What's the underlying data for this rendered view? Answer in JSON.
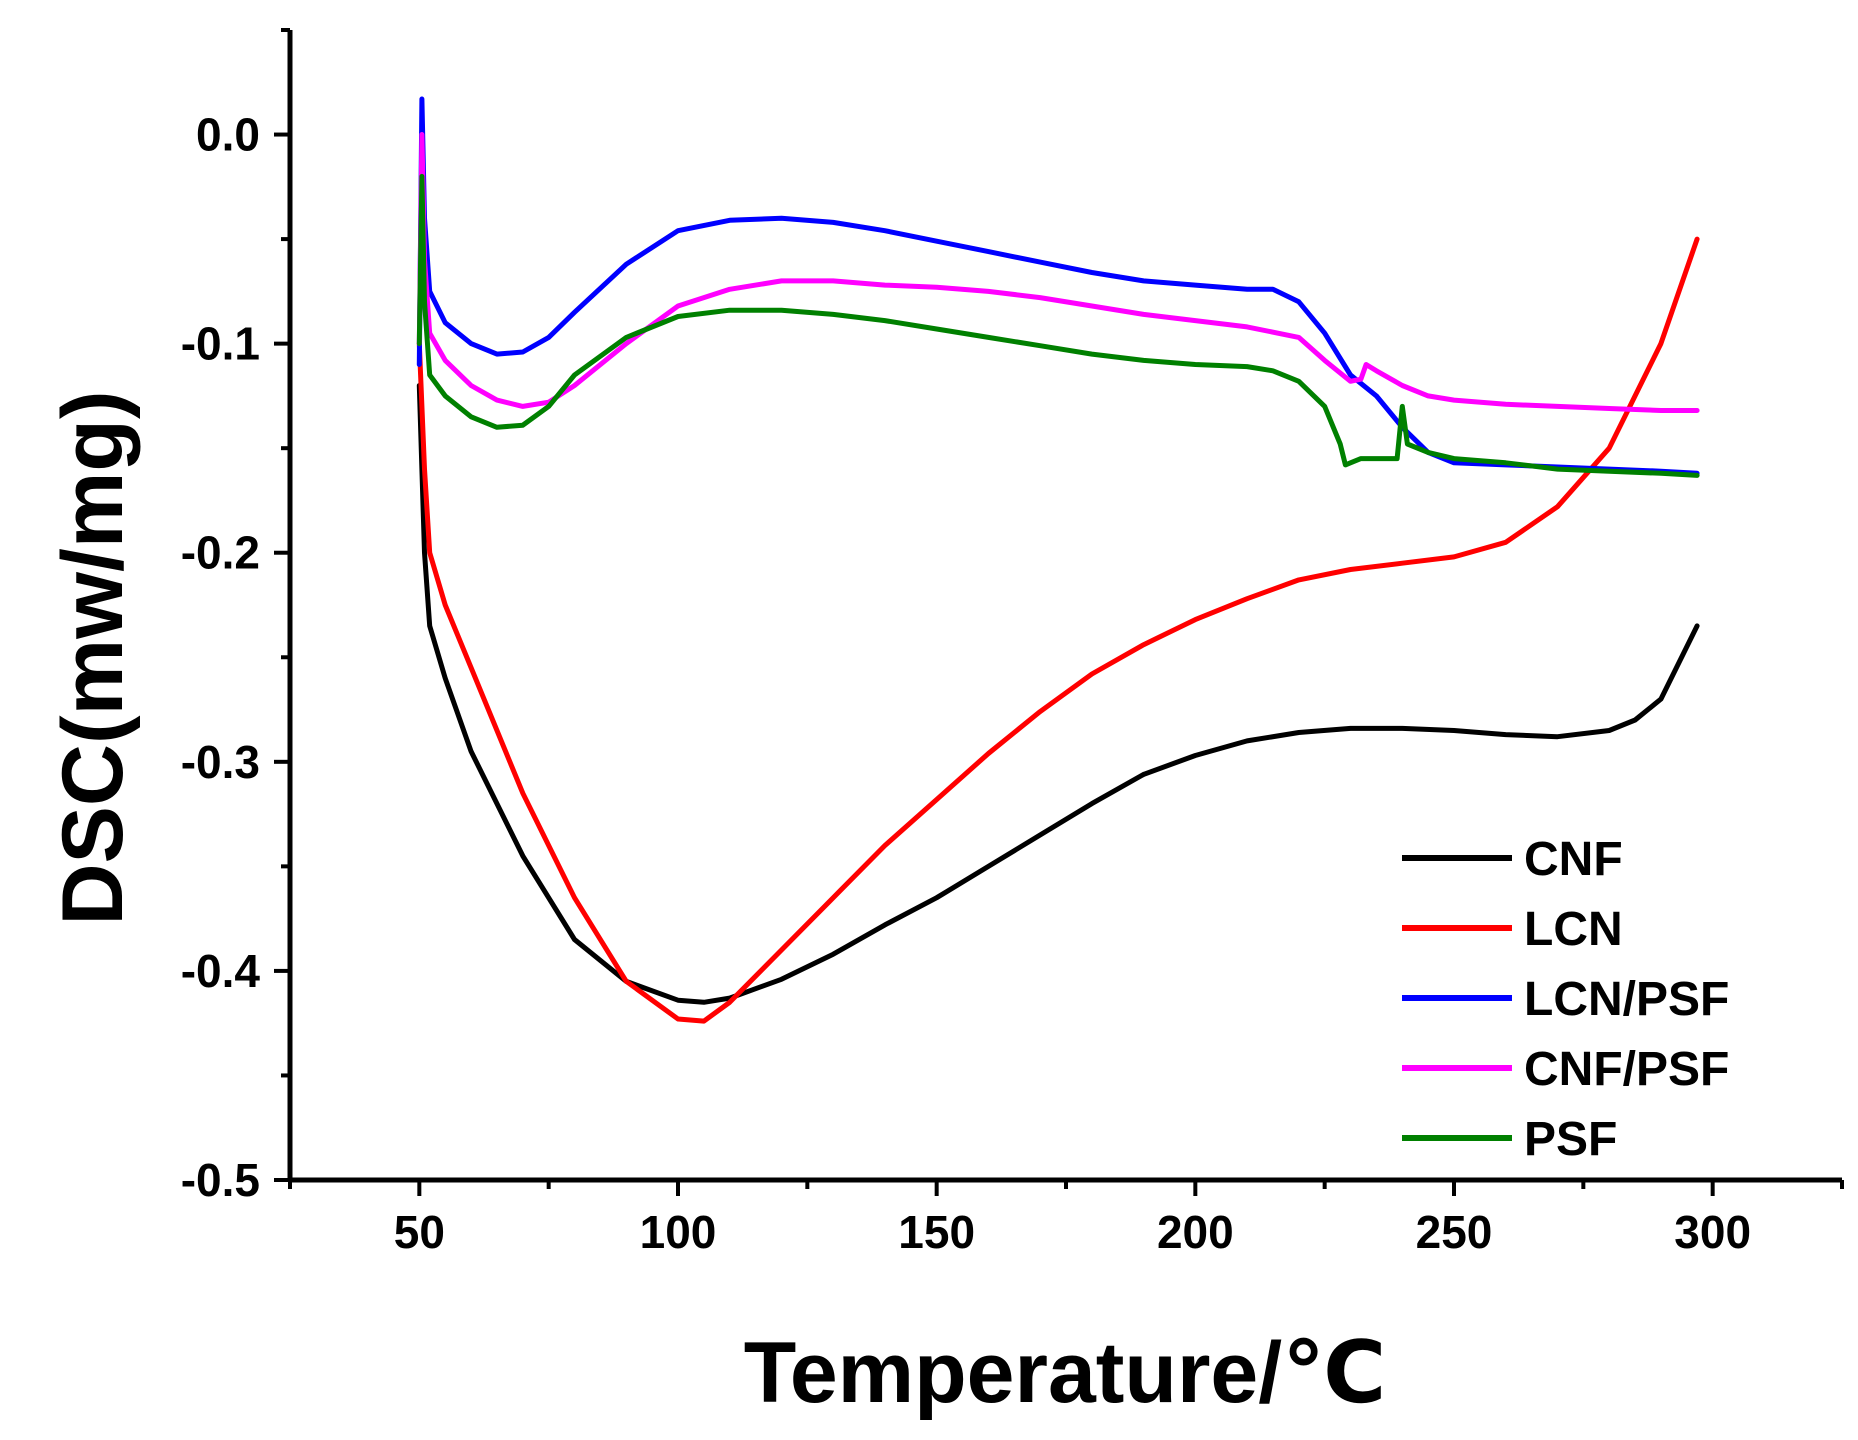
{
  "chart_data": {
    "type": "line",
    "title": "",
    "xlabel": "Temperature/℃",
    "ylabel": "DSC(mw/mg)",
    "xlim": [
      25,
      325
    ],
    "ylim": [
      -0.5,
      0.05
    ],
    "x_ticks": [
      50,
      100,
      150,
      200,
      250,
      300
    ],
    "x_tick_labels": [
      "50",
      "100",
      "150",
      "200",
      "250",
      "300"
    ],
    "y_ticks": [
      -0.5,
      -0.4,
      -0.3,
      -0.2,
      -0.1,
      0.0
    ],
    "y_tick_labels": [
      "-0.5",
      "-0.4",
      "-0.3",
      "-0.2",
      "-0.1",
      "0.0"
    ],
    "grid": false,
    "legend_position": "bottom-right",
    "series": [
      {
        "name": "CNF",
        "color": "#000000",
        "points": [
          [
            50,
            -0.12
          ],
          [
            51,
            -0.2
          ],
          [
            52,
            -0.235
          ],
          [
            55,
            -0.26
          ],
          [
            60,
            -0.295
          ],
          [
            70,
            -0.345
          ],
          [
            80,
            -0.385
          ],
          [
            90,
            -0.405
          ],
          [
            100,
            -0.414
          ],
          [
            105,
            -0.415
          ],
          [
            110,
            -0.413
          ],
          [
            120,
            -0.404
          ],
          [
            130,
            -0.392
          ],
          [
            140,
            -0.378
          ],
          [
            150,
            -0.365
          ],
          [
            160,
            -0.35
          ],
          [
            170,
            -0.335
          ],
          [
            180,
            -0.32
          ],
          [
            190,
            -0.306
          ],
          [
            200,
            -0.297
          ],
          [
            210,
            -0.29
          ],
          [
            220,
            -0.286
          ],
          [
            230,
            -0.284
          ],
          [
            240,
            -0.284
          ],
          [
            250,
            -0.285
          ],
          [
            260,
            -0.287
          ],
          [
            270,
            -0.288
          ],
          [
            280,
            -0.285
          ],
          [
            285,
            -0.28
          ],
          [
            290,
            -0.27
          ],
          [
            297,
            -0.235
          ]
        ]
      },
      {
        "name": "LCN",
        "color": "#ff0000",
        "points": [
          [
            50,
            -0.1
          ],
          [
            51,
            -0.16
          ],
          [
            52,
            -0.2
          ],
          [
            55,
            -0.225
          ],
          [
            60,
            -0.255
          ],
          [
            70,
            -0.315
          ],
          [
            80,
            -0.365
          ],
          [
            90,
            -0.405
          ],
          [
            100,
            -0.423
          ],
          [
            105,
            -0.424
          ],
          [
            110,
            -0.415
          ],
          [
            120,
            -0.39
          ],
          [
            130,
            -0.365
          ],
          [
            140,
            -0.34
          ],
          [
            150,
            -0.318
          ],
          [
            160,
            -0.296
          ],
          [
            170,
            -0.276
          ],
          [
            180,
            -0.258
          ],
          [
            190,
            -0.244
          ],
          [
            200,
            -0.232
          ],
          [
            210,
            -0.222
          ],
          [
            220,
            -0.213
          ],
          [
            230,
            -0.208
          ],
          [
            240,
            -0.205
          ],
          [
            250,
            -0.202
          ],
          [
            260,
            -0.195
          ],
          [
            270,
            -0.178
          ],
          [
            280,
            -0.15
          ],
          [
            290,
            -0.1
          ],
          [
            297,
            -0.05
          ]
        ]
      },
      {
        "name": "LCN/PSF",
        "color": "#0000ff",
        "points": [
          [
            50,
            -0.11
          ],
          [
            50.5,
            0.017
          ],
          [
            51,
            -0.04
          ],
          [
            52,
            -0.075
          ],
          [
            55,
            -0.09
          ],
          [
            60,
            -0.1
          ],
          [
            65,
            -0.105
          ],
          [
            70,
            -0.104
          ],
          [
            75,
            -0.097
          ],
          [
            80,
            -0.085
          ],
          [
            90,
            -0.062
          ],
          [
            100,
            -0.046
          ],
          [
            110,
            -0.041
          ],
          [
            120,
            -0.04
          ],
          [
            130,
            -0.042
          ],
          [
            140,
            -0.046
          ],
          [
            150,
            -0.051
          ],
          [
            160,
            -0.056
          ],
          [
            170,
            -0.061
          ],
          [
            180,
            -0.066
          ],
          [
            190,
            -0.07
          ],
          [
            200,
            -0.072
          ],
          [
            210,
            -0.074
          ],
          [
            215,
            -0.074
          ],
          [
            220,
            -0.08
          ],
          [
            225,
            -0.095
          ],
          [
            230,
            -0.115
          ],
          [
            235,
            -0.125
          ],
          [
            240,
            -0.14
          ],
          [
            245,
            -0.152
          ],
          [
            250,
            -0.157
          ],
          [
            260,
            -0.158
          ],
          [
            270,
            -0.159
          ],
          [
            280,
            -0.16
          ],
          [
            290,
            -0.161
          ],
          [
            297,
            -0.162
          ]
        ]
      },
      {
        "name": "CNF/PSF",
        "color": "#ff00ff",
        "points": [
          [
            50,
            -0.1
          ],
          [
            50.5,
            0.0
          ],
          [
            51,
            -0.06
          ],
          [
            52,
            -0.095
          ],
          [
            55,
            -0.108
          ],
          [
            60,
            -0.12
          ],
          [
            65,
            -0.127
          ],
          [
            70,
            -0.13
          ],
          [
            75,
            -0.128
          ],
          [
            80,
            -0.12
          ],
          [
            90,
            -0.1
          ],
          [
            100,
            -0.082
          ],
          [
            110,
            -0.074
          ],
          [
            120,
            -0.07
          ],
          [
            130,
            -0.07
          ],
          [
            140,
            -0.072
          ],
          [
            150,
            -0.073
          ],
          [
            160,
            -0.075
          ],
          [
            170,
            -0.078
          ],
          [
            180,
            -0.082
          ],
          [
            190,
            -0.086
          ],
          [
            200,
            -0.089
          ],
          [
            210,
            -0.092
          ],
          [
            220,
            -0.097
          ],
          [
            225,
            -0.108
          ],
          [
            230,
            -0.118
          ],
          [
            232,
            -0.117
          ],
          [
            233,
            -0.11
          ],
          [
            235,
            -0.113
          ],
          [
            240,
            -0.12
          ],
          [
            245,
            -0.125
          ],
          [
            250,
            -0.127
          ],
          [
            260,
            -0.129
          ],
          [
            270,
            -0.13
          ],
          [
            280,
            -0.131
          ],
          [
            290,
            -0.132
          ],
          [
            297,
            -0.132
          ]
        ]
      },
      {
        "name": "PSF",
        "color": "#008000",
        "points": [
          [
            50,
            -0.1
          ],
          [
            50.5,
            -0.02
          ],
          [
            51,
            -0.08
          ],
          [
            52,
            -0.115
          ],
          [
            55,
            -0.125
          ],
          [
            60,
            -0.135
          ],
          [
            65,
            -0.14
          ],
          [
            70,
            -0.139
          ],
          [
            75,
            -0.13
          ],
          [
            80,
            -0.115
          ],
          [
            90,
            -0.097
          ],
          [
            100,
            -0.087
          ],
          [
            110,
            -0.084
          ],
          [
            120,
            -0.084
          ],
          [
            130,
            -0.086
          ],
          [
            140,
            -0.089
          ],
          [
            150,
            -0.093
          ],
          [
            160,
            -0.097
          ],
          [
            170,
            -0.101
          ],
          [
            180,
            -0.105
          ],
          [
            190,
            -0.108
          ],
          [
            200,
            -0.11
          ],
          [
            210,
            -0.111
          ],
          [
            215,
            -0.113
          ],
          [
            220,
            -0.118
          ],
          [
            225,
            -0.13
          ],
          [
            228,
            -0.148
          ],
          [
            229,
            -0.158
          ],
          [
            230,
            -0.157
          ],
          [
            232,
            -0.155
          ],
          [
            235,
            -0.155
          ],
          [
            239,
            -0.155
          ],
          [
            240,
            -0.13
          ],
          [
            241,
            -0.148
          ],
          [
            245,
            -0.152
          ],
          [
            250,
            -0.155
          ],
          [
            260,
            -0.157
          ],
          [
            270,
            -0.16
          ],
          [
            280,
            -0.161
          ],
          [
            290,
            -0.162
          ],
          [
            297,
            -0.163
          ]
        ]
      }
    ]
  }
}
